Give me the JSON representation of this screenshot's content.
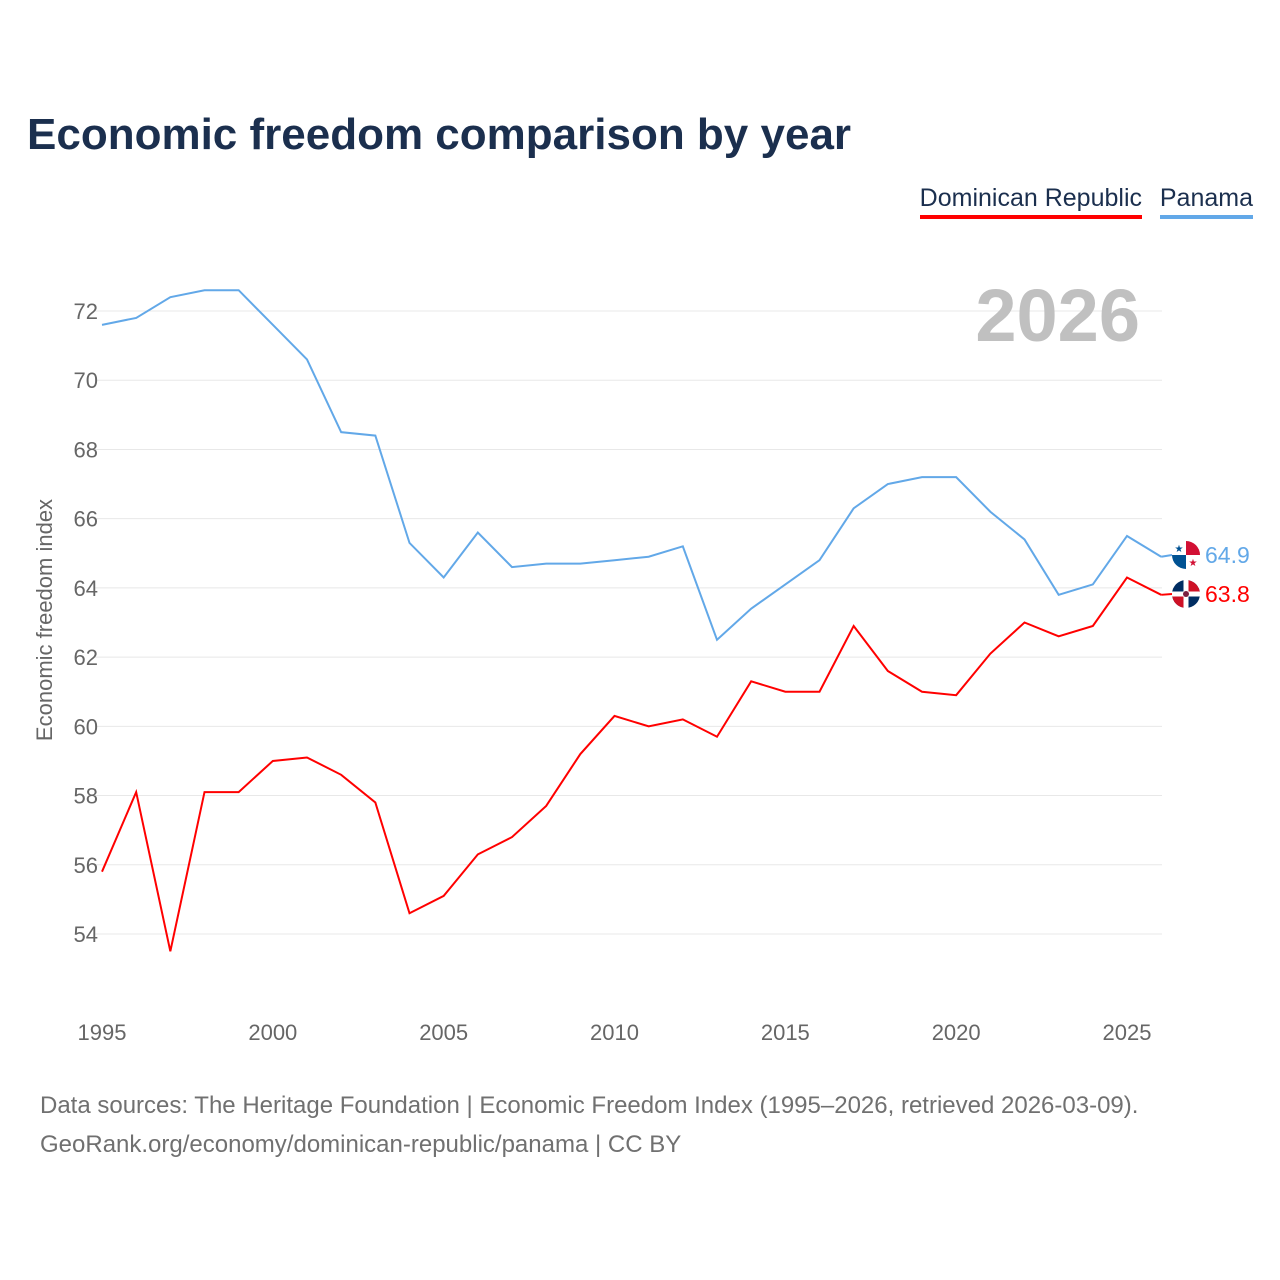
{
  "title": "Economic freedom comparison by year",
  "footer": {
    "line1": "Data sources: The Heritage Foundation | Economic Freedom Index (1995–2026, retrieved 2026-03-09).",
    "line2": "GeoRank.org/economy/dominican-republic/panama | CC BY"
  },
  "chart_data": {
    "type": "line",
    "title": "Economic freedom comparison by year",
    "ylabel": "Economic freedom index",
    "xlabel": "",
    "year_label": "2026",
    "x": [
      1995,
      1996,
      1997,
      1998,
      1999,
      2000,
      2001,
      2002,
      2003,
      2004,
      2005,
      2006,
      2007,
      2008,
      2009,
      2010,
      2011,
      2012,
      2013,
      2014,
      2015,
      2016,
      2017,
      2018,
      2019,
      2020,
      2021,
      2022,
      2023,
      2024,
      2025,
      2026
    ],
    "xticks": [
      1995,
      2000,
      2005,
      2010,
      2015,
      2020,
      2025
    ],
    "yticks": [
      54,
      56,
      58,
      60,
      62,
      64,
      66,
      68,
      70,
      72
    ],
    "xlim": [
      1995,
      2026
    ],
    "ylim": [
      52,
      73.5
    ],
    "legend_position": "top-right",
    "series": [
      {
        "name": "Dominican Republic",
        "color": "#ff0000",
        "end_label": "63.8",
        "values": [
          55.8,
          58.1,
          53.5,
          58.1,
          58.1,
          59.0,
          59.1,
          58.6,
          57.8,
          54.6,
          55.1,
          56.3,
          56.8,
          57.7,
          59.2,
          60.3,
          60.0,
          60.2,
          59.7,
          61.3,
          61.0,
          61.0,
          62.9,
          61.6,
          61.0,
          60.9,
          62.1,
          63.0,
          62.6,
          62.9,
          64.3,
          63.8
        ]
      },
      {
        "name": "Panama",
        "color": "#62a8e8",
        "end_label": "64.9",
        "values": [
          71.6,
          71.8,
          72.4,
          72.6,
          72.6,
          71.6,
          70.6,
          68.5,
          68.4,
          65.3,
          64.3,
          65.6,
          64.6,
          64.7,
          64.7,
          64.8,
          64.9,
          65.2,
          62.5,
          63.4,
          64.1,
          64.8,
          66.3,
          67.0,
          67.2,
          67.2,
          66.2,
          65.4,
          63.8,
          64.1,
          65.5,
          64.9
        ]
      }
    ]
  }
}
